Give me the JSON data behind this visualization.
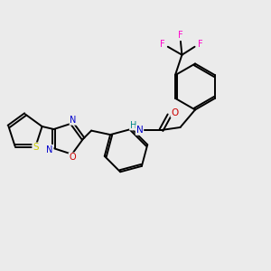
{
  "bg_color": "#ebebeb",
  "bond_color": "#000000",
  "atom_colors": {
    "N": "#0000cc",
    "O": "#cc0000",
    "S": "#cccc00",
    "F": "#ff00cc",
    "H": "#008888",
    "C": "#000000"
  },
  "lw": 1.4
}
